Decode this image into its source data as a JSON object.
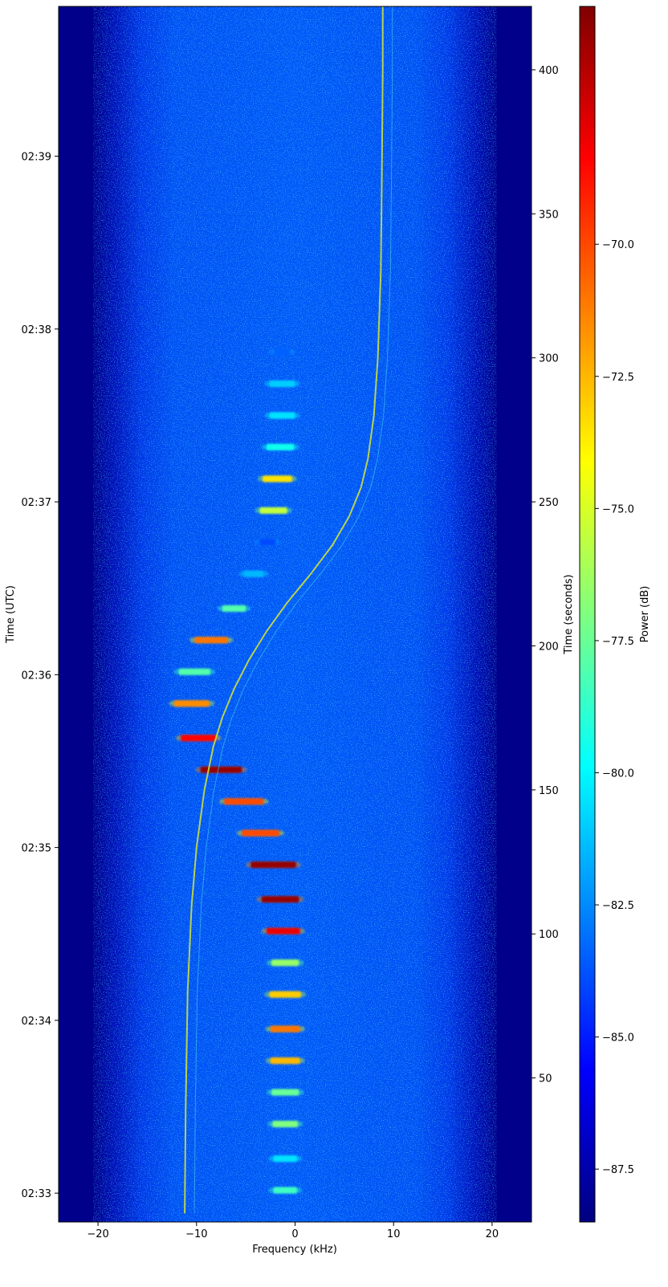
{
  "chart_data": {
    "type": "heatmap",
    "title": "",
    "xlabel": "Frequency (kHz)",
    "ylabel_left": "Time (UTC)",
    "ylabel_right": "Time (seconds)",
    "colorbar_label": "Power (dB)",
    "colormap": "jet",
    "xlim": [
      -24,
      24
    ],
    "ylim_seconds": [
      0,
      422
    ],
    "xticks": [
      -20,
      -10,
      0,
      10,
      20
    ],
    "xtick_labels": [
      "−20",
      "−10",
      "0",
      "10",
      "20"
    ],
    "yticks_utc": [
      {
        "label": "02:33",
        "seconds": 10
      },
      {
        "label": "02:34",
        "seconds": 70
      },
      {
        "label": "02:35",
        "seconds": 130
      },
      {
        "label": "02:36",
        "seconds": 190
      },
      {
        "label": "02:37",
        "seconds": 250
      },
      {
        "label": "02:38",
        "seconds": 310
      },
      {
        "label": "02:39",
        "seconds": 370
      }
    ],
    "yticks_seconds": [
      50,
      100,
      150,
      200,
      250,
      300,
      350,
      400
    ],
    "colorbar_range": [
      -88.5,
      -65.5
    ],
    "colorbar_ticks": [
      -87.5,
      -85.0,
      -82.5,
      -80.0,
      -77.5,
      -75.0,
      -72.5,
      -70.0
    ],
    "colorbar_tick_labels": [
      "−87.5",
      "−85.0",
      "−82.5",
      "−80.0",
      "−77.5",
      "−75.0",
      "−72.5",
      "−70.0"
    ],
    "noise_band_khz": [
      -19.5,
      19.5
    ],
    "doppler_trace": [
      [
        3,
        -11.2
      ],
      [
        40,
        -11.1
      ],
      [
        80,
        -10.9
      ],
      [
        110,
        -10.5
      ],
      [
        130,
        -10.0
      ],
      [
        150,
        -9.2
      ],
      [
        165,
        -8.3
      ],
      [
        175,
        -7.4
      ],
      [
        185,
        -6.2
      ],
      [
        195,
        -4.7
      ],
      [
        205,
        -2.9
      ],
      [
        215,
        -0.8
      ],
      [
        225,
        1.6
      ],
      [
        235,
        3.8
      ],
      [
        245,
        5.5
      ],
      [
        255,
        6.7
      ],
      [
        265,
        7.4
      ],
      [
        280,
        8.0
      ],
      [
        300,
        8.4
      ],
      [
        330,
        8.7
      ],
      [
        360,
        8.8
      ],
      [
        400,
        8.9
      ],
      [
        422,
        8.9
      ]
    ],
    "pulses": [
      {
        "t": 11,
        "f": -1.0,
        "w": 2.4,
        "p": -78.5
      },
      {
        "t": 22,
        "f": -1.0,
        "w": 2.4,
        "p": -80.5
      },
      {
        "t": 34,
        "f": -1.0,
        "w": 2.6,
        "p": -77.0
      },
      {
        "t": 45,
        "f": -1.0,
        "w": 2.8,
        "p": -77.5
      },
      {
        "t": 56,
        "f": -1.0,
        "w": 3.0,
        "p": -72.5
      },
      {
        "t": 67,
        "f": -1.0,
        "w": 3.0,
        "p": -71.0
      },
      {
        "t": 79,
        "f": -1.0,
        "w": 3.2,
        "p": -73.0
      },
      {
        "t": 90,
        "f": -1.0,
        "w": 2.8,
        "p": -76.5
      },
      {
        "t": 101,
        "f": -1.2,
        "w": 3.4,
        "p": -68.0
      },
      {
        "t": 112,
        "f": -1.5,
        "w": 3.8,
        "p": -66.0
      },
      {
        "t": 124,
        "f": -2.2,
        "w": 4.6,
        "p": -66.0
      },
      {
        "t": 135,
        "f": -3.5,
        "w": 3.8,
        "p": -70.0
      },
      {
        "t": 146,
        "f": -5.2,
        "w": 4.0,
        "p": -70.0
      },
      {
        "t": 157,
        "f": -7.5,
        "w": 4.2,
        "p": -66.0
      },
      {
        "t": 168,
        "f": -9.8,
        "w": 3.6,
        "p": -68.5
      },
      {
        "t": 180,
        "f": -10.5,
        "w": 3.6,
        "p": -71.5
      },
      {
        "t": 191,
        "f": -10.2,
        "w": 3.2,
        "p": -78.0
      },
      {
        "t": 202,
        "f": -8.5,
        "w": 3.4,
        "p": -71.0
      },
      {
        "t": 213,
        "f": -6.2,
        "w": 2.4,
        "p": -78.0
      },
      {
        "t": 225,
        "f": -4.2,
        "w": 2.0,
        "p": -81.5
      },
      {
        "t": 236,
        "f": -2.8,
        "w": 1.6,
        "p": -84.0
      },
      {
        "t": 247,
        "f": -2.2,
        "w": 2.8,
        "p": -75.5
      },
      {
        "t": 258,
        "f": -1.8,
        "w": 3.0,
        "p": -73.5
      },
      {
        "t": 269,
        "f": -1.5,
        "w": 2.8,
        "p": -79.5
      },
      {
        "t": 280,
        "f": -1.3,
        "w": 2.6,
        "p": -80.5
      },
      {
        "t": 291,
        "f": -1.3,
        "w": 2.6,
        "p": -81.0
      },
      {
        "t": 302,
        "f": -1.3,
        "w": 1.6,
        "p": -83.5
      }
    ]
  },
  "colors": {
    "background_floor": "#00008b",
    "axis": "#000000"
  }
}
